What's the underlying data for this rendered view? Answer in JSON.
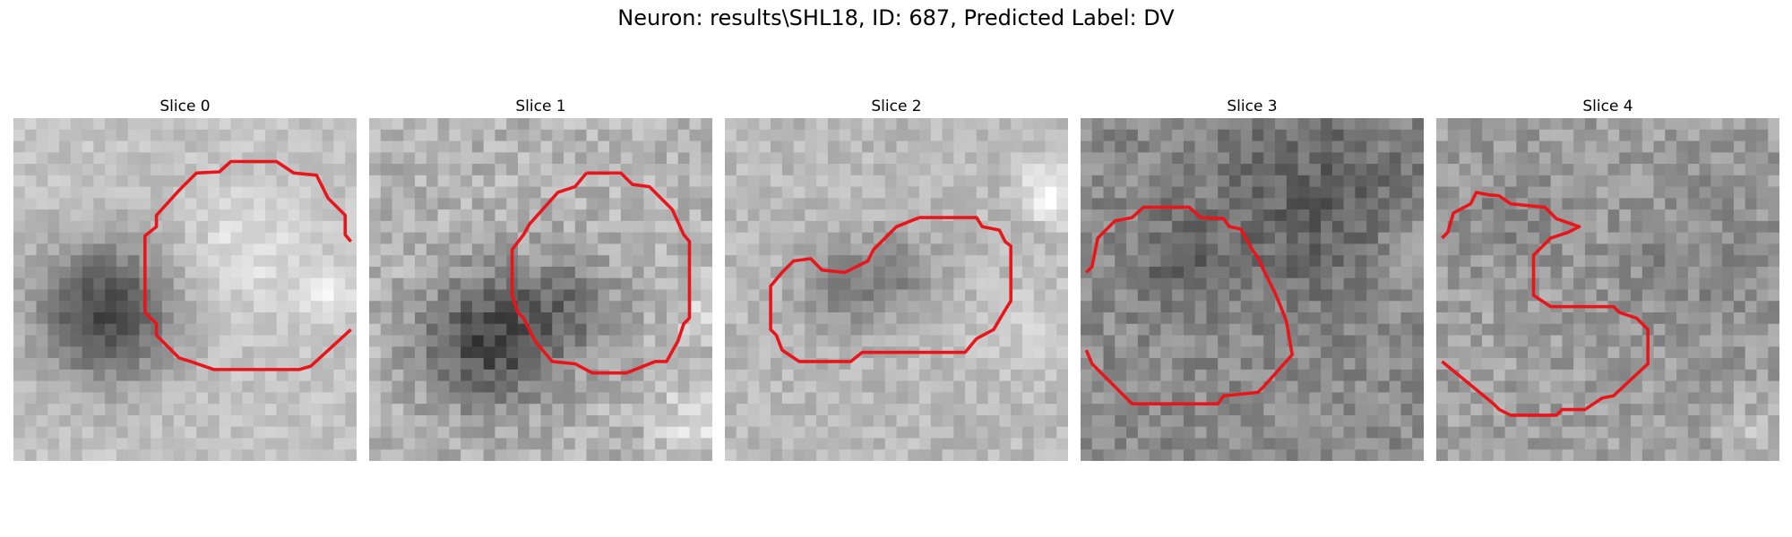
{
  "figure": {
    "title": "Neuron: results\\SHL18, ID: 687, Predicted Label: DV"
  },
  "contour_color": "#e8151b",
  "panels": [
    {
      "title": "Slice 0"
    },
    {
      "title": "Slice 1"
    },
    {
      "title": "Slice 2"
    },
    {
      "title": "Slice 3"
    },
    {
      "title": "Slice 4"
    }
  ]
}
